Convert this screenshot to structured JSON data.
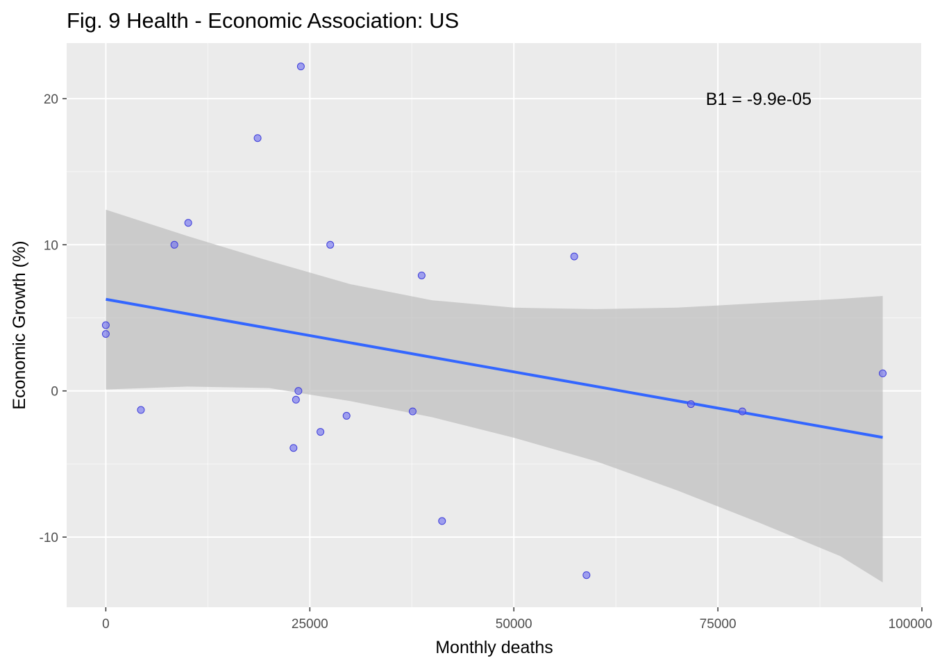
{
  "chart_data": {
    "type": "scatter",
    "title": "Fig. 9 Health - Economic Association: US",
    "xlabel": "Monthly deaths",
    "ylabel": "Economic Growth (%)",
    "xlim": [
      -4800,
      100000
    ],
    "ylim": [
      -14.8,
      23.8
    ],
    "x_ticks": [
      0,
      25000,
      50000,
      75000,
      100000
    ],
    "x_tick_labels": [
      "0",
      "25000",
      "50000",
      "75000",
      "100000"
    ],
    "y_ticks": [
      -10,
      0,
      10,
      20
    ],
    "y_tick_labels": [
      "-10",
      "0",
      "10",
      "20"
    ],
    "grid": true,
    "annotation": "B1 = -9.9e-05",
    "annotation_position": {
      "x": 80000,
      "y": 20
    },
    "points": [
      {
        "x": 0,
        "y": 4.5
      },
      {
        "x": 0,
        "y": 3.9
      },
      {
        "x": 4300,
        "y": -1.3
      },
      {
        "x": 8400,
        "y": 10.0
      },
      {
        "x": 10100,
        "y": 11.5
      },
      {
        "x": 18600,
        "y": 17.3
      },
      {
        "x": 23000,
        "y": -3.9
      },
      {
        "x": 23300,
        "y": -0.6
      },
      {
        "x": 23600,
        "y": 0.0
      },
      {
        "x": 23900,
        "y": 22.2
      },
      {
        "x": 26300,
        "y": -2.8
      },
      {
        "x": 27500,
        "y": 10.0
      },
      {
        "x": 29500,
        "y": -1.7
      },
      {
        "x": 37600,
        "y": -1.4
      },
      {
        "x": 38700,
        "y": 7.9
      },
      {
        "x": 41200,
        "y": -8.9
      },
      {
        "x": 57400,
        "y": 9.2
      },
      {
        "x": 58900,
        "y": -12.6
      },
      {
        "x": 71700,
        "y": -0.9
      },
      {
        "x": 78000,
        "y": -1.4
      },
      {
        "x": 95200,
        "y": 1.2
      }
    ],
    "trend_line": {
      "x": [
        0,
        95200
      ],
      "y": [
        6.27,
        -3.18
      ]
    },
    "confidence_band": {
      "x": [
        0,
        10000,
        20000,
        30000,
        40000,
        50000,
        60000,
        70000,
        80000,
        90000,
        95200
      ],
      "upper": [
        12.4,
        10.6,
        8.9,
        7.3,
        6.2,
        5.7,
        5.6,
        5.7,
        6.0,
        6.3,
        6.5
      ],
      "lower": [
        0.1,
        0.3,
        0.2,
        -0.7,
        -1.8,
        -3.2,
        -4.8,
        -6.8,
        -9.0,
        -11.3,
        -13.1
      ]
    },
    "colors": {
      "panel": "#ebebeb",
      "grid_major": "#ffffff",
      "point_fill": "#6b6bf0",
      "point_stroke": "#3d3dd9",
      "line": "#3366ff",
      "band": "#bdbdbd"
    }
  }
}
